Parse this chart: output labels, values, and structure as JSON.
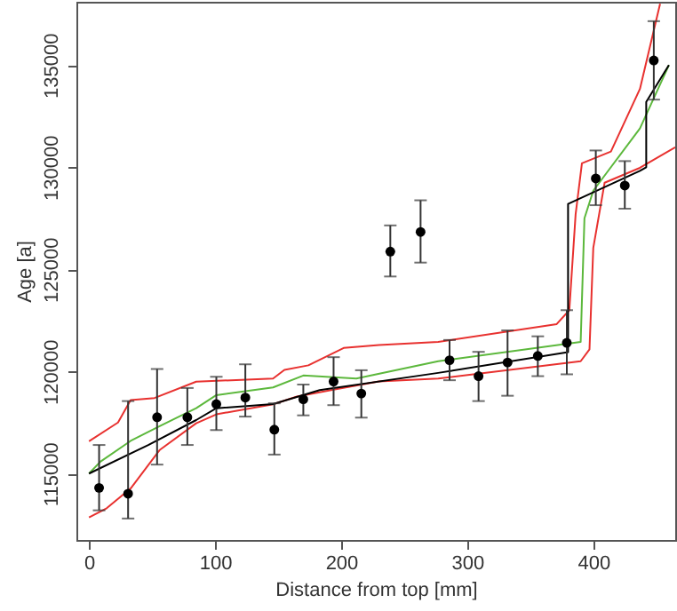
{
  "chart_data": {
    "type": "line",
    "xlabel": "Distance from top [mm]",
    "ylabel": "Age [a]",
    "xlim": [
      -10,
      465
    ],
    "ylim": [
      111750,
      138100
    ],
    "xticks": [
      0,
      100,
      200,
      300,
      400
    ],
    "yticks": [
      115000,
      120000,
      125000,
      130000,
      135000
    ],
    "grid": false,
    "line_style": "solid",
    "series": [
      {
        "color": "#e8312f",
        "marker": "none",
        "x": [
          0,
          23,
          33,
          52,
          85,
          146,
          155,
          174,
          202,
          230,
          277,
          371,
          381,
          386,
          391,
          414,
          437,
          453
        ],
        "values": [
          116580,
          117500,
          118600,
          118700,
          119500,
          119650,
          120080,
          120300,
          121150,
          121290,
          121450,
          122320,
          123000,
          127700,
          130190,
          130770,
          133830,
          138000
        ]
      },
      {
        "color": "#e8312f",
        "marker": "none",
        "x": [
          0,
          14,
          33,
          56,
          85,
          101,
          146,
          165,
          193,
          230,
          277,
          390,
          397,
          400,
          409,
          437,
          465
        ],
        "values": [
          112850,
          113300,
          114270,
          116150,
          117460,
          117900,
          118390,
          118770,
          119100,
          119510,
          119650,
          120500,
          121080,
          126050,
          129240,
          129970,
          130980
        ]
      },
      {
        "color": "#5cb83c",
        "marker": "none",
        "x": [
          0,
          9,
          33,
          56,
          85,
          101,
          146,
          170,
          212,
          277,
          390,
          393,
          400,
          437,
          460
        ],
        "values": [
          115000,
          115580,
          116600,
          117320,
          118200,
          118840,
          119220,
          119800,
          119650,
          120500,
          121450,
          127500,
          128850,
          131900,
          135000
        ]
      },
      {
        "color": "#000000",
        "marker": "none",
        "x": [
          0,
          47,
          85,
          101,
          146,
          183,
          277,
          380,
          380,
          437,
          442,
          442,
          460
        ],
        "values": [
          115000,
          116400,
          117620,
          118200,
          118400,
          119090,
          119930,
          120950,
          128200,
          129820,
          130000,
          133200,
          135000
        ]
      },
      {
        "type": "scatter",
        "color": "#000000",
        "marker": "circle",
        "x": [
          8,
          31,
          54,
          78,
          101,
          124,
          147,
          170,
          194,
          216,
          239,
          263,
          286,
          309,
          332,
          356,
          379,
          402,
          425,
          448
        ],
        "values": [
          114300,
          114015,
          117760,
          117760,
          118400,
          118720,
          117150,
          118640,
          119510,
          118920,
          125870,
          126830,
          120550,
          119770,
          120440,
          120760,
          121400,
          129450,
          129100,
          135230
        ],
        "errors": [
          [
            113200,
            116400
          ],
          [
            112800,
            118550
          ],
          [
            115440,
            120120
          ],
          [
            116400,
            119190
          ],
          [
            117130,
            119740
          ],
          [
            117790,
            120350
          ],
          [
            115930,
            118440
          ],
          [
            117850,
            119360
          ],
          [
            118350,
            120700
          ],
          [
            117740,
            120060
          ],
          [
            124650,
            127150
          ],
          [
            125330,
            128380
          ],
          [
            119570,
            121540
          ],
          [
            118550,
            120960
          ],
          [
            118810,
            122010
          ],
          [
            119770,
            121720
          ],
          [
            119860,
            123000
          ],
          [
            128140,
            130820
          ],
          [
            127970,
            130300
          ],
          [
            133310,
            137150
          ]
        ]
      }
    ]
  }
}
